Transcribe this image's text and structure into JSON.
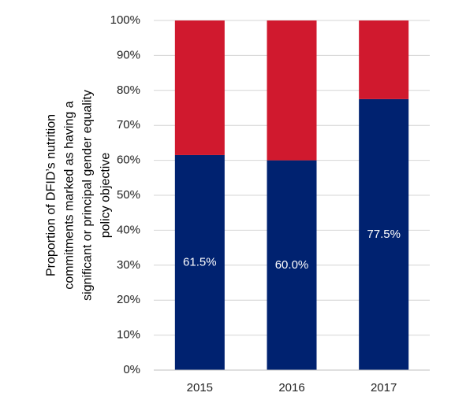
{
  "chart_data": {
    "type": "stacked_bar",
    "ylabel": [
      "Proportion of DFID’s nutrition",
      "commitments marked as having a",
      "significant or principal gender equality",
      "policy objective"
    ],
    "categories": [
      "2015",
      "2016",
      "2017"
    ],
    "series": [
      {
        "color": "#002270",
        "values": [
          61.5,
          60.0,
          77.5
        ],
        "value_labels": [
          "61.5%",
          "60.0%",
          "77.5%"
        ]
      },
      {
        "color": "#d0192e",
        "values": [
          38.5,
          40.0,
          22.5
        ]
      }
    ],
    "ylim": [
      0,
      100
    ],
    "yticks": [
      {
        "value": 0,
        "label": "0%"
      },
      {
        "value": 10,
        "label": "10%"
      },
      {
        "value": 20,
        "label": "20%"
      },
      {
        "value": 30,
        "label": "30%"
      },
      {
        "value": 40,
        "label": "40%"
      },
      {
        "value": 50,
        "label": "50%"
      },
      {
        "value": 60,
        "label": "60%"
      },
      {
        "value": 70,
        "label": "70%"
      },
      {
        "value": 80,
        "label": "80%"
      },
      {
        "value": 90,
        "label": "90%"
      },
      {
        "value": 100,
        "label": "100%"
      }
    ],
    "grid": true
  }
}
